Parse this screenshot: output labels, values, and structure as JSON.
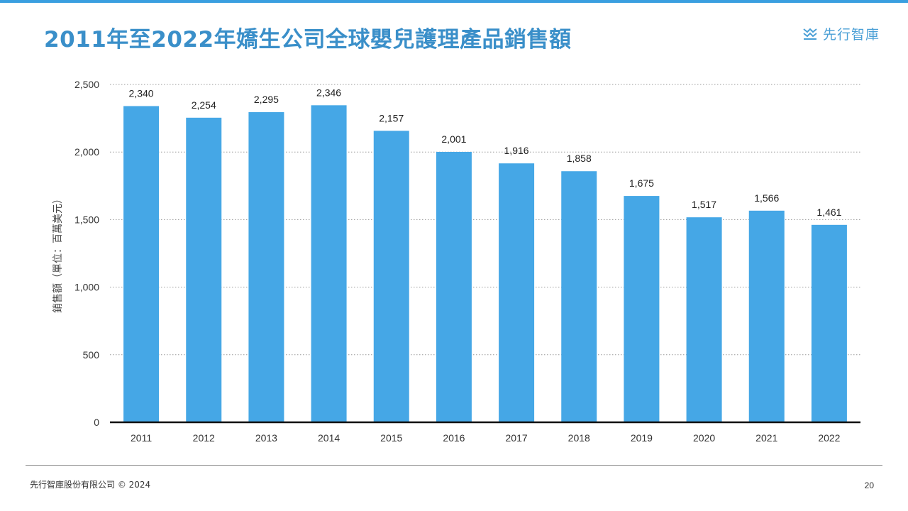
{
  "page": {
    "title": "2011年至2022年嬌生公司全球嬰兒護理產品銷售額",
    "brand_name": "先行智庫",
    "brand_icon": "stacked-chevrons-logo-icon",
    "footer_company": "先行智庫股份有限公司 © 2024",
    "page_number": "20"
  },
  "colors": {
    "accent": "#3a9fe0",
    "title": "#3a8fc9",
    "bar": "#45a7e6",
    "brand": "#4a9fd6"
  },
  "chart_data": {
    "type": "bar",
    "categories": [
      "2011",
      "2012",
      "2013",
      "2014",
      "2015",
      "2016",
      "2017",
      "2018",
      "2019",
      "2020",
      "2021",
      "2022"
    ],
    "values": [
      2340,
      2254,
      2295,
      2346,
      2157,
      2001,
      1916,
      1858,
      1675,
      1517,
      1566,
      1461
    ],
    "data_labels": [
      "2,340",
      "2,254",
      "2,295",
      "2,346",
      "2,157",
      "2,001",
      "1,916",
      "1,858",
      "1,675",
      "1,517",
      "1,566",
      "1,461"
    ],
    "ylabel": "銷售額（單位：百萬美元）",
    "ylim": [
      0,
      2500
    ],
    "yticks": [
      0,
      500,
      1000,
      1500,
      2000,
      2500
    ],
    "ytick_labels": [
      "0",
      "500",
      "1,000",
      "1,500",
      "2,000",
      "2,500"
    ],
    "grid": "horizontal-dotted",
    "legend": "none"
  }
}
